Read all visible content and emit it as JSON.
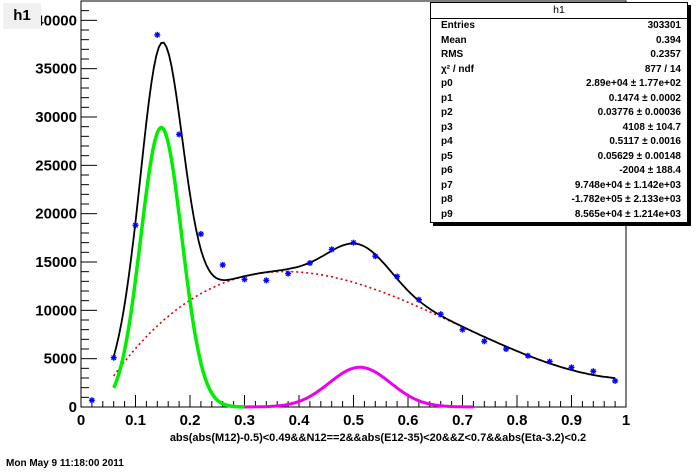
{
  "histogram": {
    "title": "h1"
  },
  "footer": {
    "date": "Mon May  9 11:18:00 2011"
  },
  "stats": {
    "title": "h1",
    "rows": [
      {
        "label": "Entries",
        "value": "303301"
      },
      {
        "label": "Mean",
        "value": "0.394"
      },
      {
        "label": "RMS",
        "value": "0.2357"
      },
      {
        "label": "χ² / ndf",
        "value": "877 / 14"
      },
      {
        "label": "p0",
        "value": "2.89e+04 ± 1.77e+02"
      },
      {
        "label": "p1",
        "value": "0.1474 ± 0.0002"
      },
      {
        "label": "p2",
        "value": "0.03776 ± 0.00036"
      },
      {
        "label": "p3",
        "value": "4108 ± 104.7"
      },
      {
        "label": "p4",
        "value": "0.5117 ± 0.0016"
      },
      {
        "label": "p5",
        "value": "0.05629 ± 0.00148"
      },
      {
        "label": "p6",
        "value": "-2004 ± 188.4"
      },
      {
        "label": "p7",
        "value": "9.748e+04 ± 1.142e+03"
      },
      {
        "label": "p8",
        "value": "-1.782e+05 ± 2.133e+03"
      },
      {
        "label": "p9",
        "value": "8.565e+04 ± 1.214e+03"
      }
    ]
  },
  "chart_data": {
    "type": "scatter",
    "title": "h1",
    "xlabel": "abs(abs(M12)-0.5)<0.49&&N12==2&&abs(E12-35)<20&&Z<0.7&&abs(Eta-3.2)<0.2",
    "ylabel": "",
    "xlim": [
      0,
      1
    ],
    "ylim": [
      0,
      42000
    ],
    "xticks": [
      "0",
      "0.1",
      "0.2",
      "0.3",
      "0.4",
      "0.5",
      "0.6",
      "0.7",
      "0.8",
      "0.9",
      "1"
    ],
    "yticks": [
      "0",
      "5000",
      "10000",
      "15000",
      "20000",
      "25000",
      "30000",
      "35000",
      "40000"
    ],
    "grid": false,
    "series": [
      {
        "kind": "data-points",
        "color": "#0000ff",
        "x": [
          0.02,
          0.06,
          0.1,
          0.14,
          0.18,
          0.22,
          0.26,
          0.3,
          0.34,
          0.38,
          0.42,
          0.46,
          0.5,
          0.54,
          0.58,
          0.62,
          0.66,
          0.7,
          0.74,
          0.78,
          0.82,
          0.86,
          0.9,
          0.94,
          0.98
        ],
        "y": [
          700,
          5100,
          18800,
          38500,
          28200,
          17900,
          14700,
          13200,
          13100,
          13800,
          14900,
          16300,
          17000,
          15600,
          13500,
          11100,
          9600,
          8000,
          6800,
          6000,
          5300,
          4700,
          4100,
          3700,
          2700
        ]
      },
      {
        "kind": "total-fit",
        "color": "#000000",
        "style": "solid",
        "xrange": [
          0.06,
          0.98
        ]
      },
      {
        "kind": "gaussian-1",
        "color": "#00ee00",
        "style": "solid",
        "amplitude": 28900,
        "mean": 0.1474,
        "sigma": 0.03776,
        "xrange": [
          0.06,
          0.3
        ]
      },
      {
        "kind": "gaussian-2",
        "color": "#ee00ee",
        "style": "solid",
        "amplitude": 4108,
        "mean": 0.5117,
        "sigma": 0.05629,
        "xrange": [
          0.3,
          0.72
        ]
      },
      {
        "kind": "polynomial-background",
        "color": "#dd0000",
        "style": "dotted",
        "coefficients": [
          -2004,
          97480,
          -178200,
          85650
        ],
        "xrange": [
          0.06,
          0.98
        ]
      }
    ]
  }
}
